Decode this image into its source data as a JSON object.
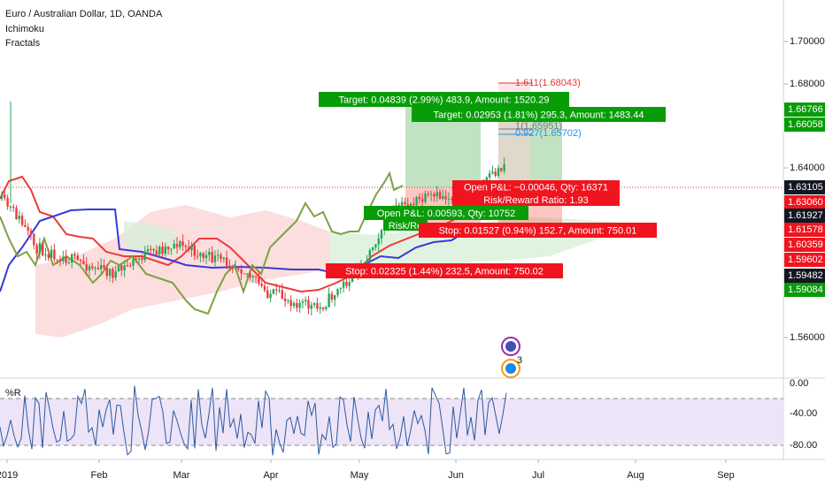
{
  "header": {
    "symbol": "Euro / Australian Dollar, 1D, OANDA",
    "indicators": [
      "Ichimoku",
      "Fractals"
    ]
  },
  "price_axis": {
    "labels": [
      "1.70000",
      "1.68000",
      "1.64000",
      "1.56000"
    ],
    "markers": [
      {
        "label": "1.66766",
        "color": "#089c08"
      },
      {
        "label": "1.66058",
        "color": "#089c08"
      },
      {
        "label": "1.63105",
        "color": "#131722"
      },
      {
        "label": "1.63060",
        "color": "#f0141e"
      },
      {
        "label": "1.61927",
        "color": "#131722"
      },
      {
        "label": "1.61578",
        "color": "#f0141e"
      },
      {
        "label": "1.60359",
        "color": "#f0141e"
      },
      {
        "label": "1.59602",
        "color": "#f0141e"
      },
      {
        "label": "1.59482",
        "color": "#131722"
      },
      {
        "label": "1.59084",
        "color": "#089c08"
      }
    ]
  },
  "time_axis": {
    "labels": [
      "2019",
      "Feb",
      "Mar",
      "Apr",
      "May",
      "Jun",
      "Jul",
      "Aug",
      "Sep"
    ]
  },
  "fib_labels": [
    "1.611(1.68043)",
    "1(1.65951)",
    "0.927(1.65702)"
  ],
  "orders": [
    {
      "text": "Target: 0.04839 (2.99%) 483.9, Amount: 1520.29",
      "color": "#089c08"
    },
    {
      "text": "Target: 0.02953 (1.81%) 295.3, Amount: 1483.44",
      "color": "#089c08"
    },
    {
      "text": "Open P&L: −0.00046, Qty: 16371",
      "color": "#f0141e"
    },
    {
      "text": "Risk/Reward Ratio: 1.93",
      "color": "#f0141e"
    },
    {
      "text": "Open P&L: 0.00593, Qty: 10752",
      "color": "#089c08"
    },
    {
      "text": "Risk/Re",
      "color": "#089c08"
    },
    {
      "text": "Stop: 0.01527 (0.94%) 152.7, Amount: 750.01",
      "color": "#f0141e"
    },
    {
      "text": "Stop: 0.02325 (1.44%) 232.5, Amount: 750.02",
      "color": "#f0141e"
    }
  ],
  "indicator_panel": {
    "title": "%R",
    "labels": [
      "0.00",
      "-40.00",
      "-80.00"
    ]
  },
  "event_badge": "3"
}
